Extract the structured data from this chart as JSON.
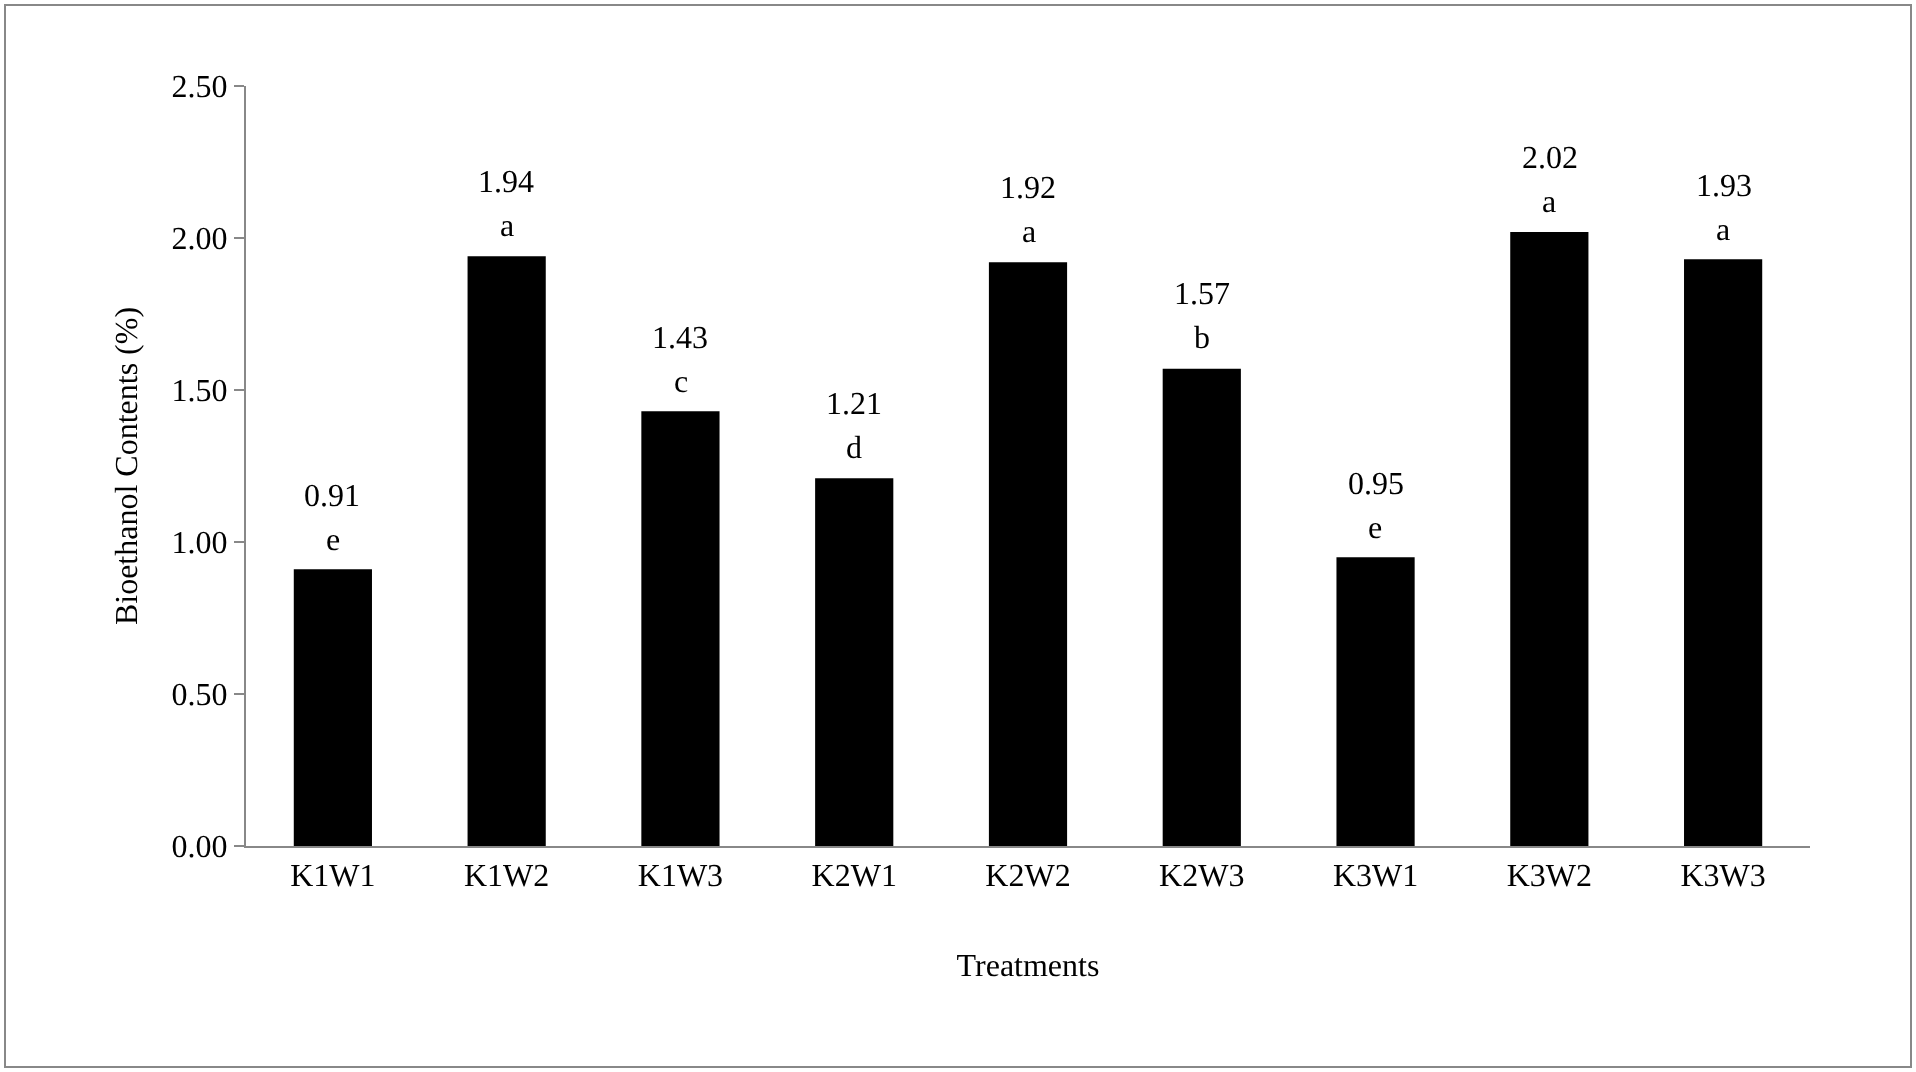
{
  "chart_data": {
    "type": "bar",
    "xlabel": "Treatments",
    "ylabel": "Bioethanol Contents (%)",
    "categories": [
      "K1W1",
      "K1W2",
      "K1W3",
      "K2W1",
      "K2W2",
      "K2W3",
      "K3W1",
      "K3W2",
      "K3W3"
    ],
    "values": [
      0.91,
      1.94,
      1.43,
      1.21,
      1.92,
      1.57,
      0.95,
      2.02,
      1.93
    ],
    "color": "#000000",
    "data_labels": true,
    "ylim": [
      0,
      2.5
    ],
    "yticks": [
      {
        "value": 0,
        "label": "0.00"
      },
      {
        "value": 0.5,
        "label": "0.50"
      },
      {
        "value": 1,
        "label": "1.00"
      },
      {
        "value": 1.5,
        "label": "1.50"
      },
      {
        "value": 2,
        "label": "2.00"
      },
      {
        "value": 2.5,
        "label": "2.50"
      }
    ],
    "annotations": [
      {
        "text": "e",
        "x": "K1W1",
        "y": 0.91
      },
      {
        "text": "a",
        "x": "K1W2",
        "y": 1.94
      },
      {
        "text": "c",
        "x": "K1W3",
        "y": 1.43
      },
      {
        "text": "d",
        "x": "K2W1",
        "y": 1.21
      },
      {
        "text": "a",
        "x": "K2W2",
        "y": 1.92
      },
      {
        "text": "b",
        "x": "K2W3",
        "y": 1.57
      },
      {
        "text": "e",
        "x": "K3W1",
        "y": 0.95
      },
      {
        "text": "a",
        "x": "K3W2",
        "y": 2.02
      },
      {
        "text": "a",
        "x": "K3W3",
        "y": 1.93
      }
    ],
    "grid": false,
    "legend": false
  }
}
